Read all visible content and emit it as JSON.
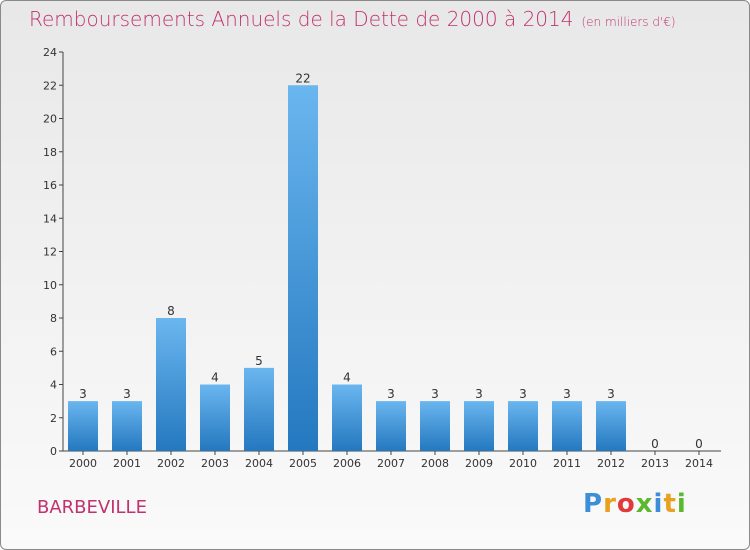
{
  "chart_data": {
    "type": "bar",
    "title": "Remboursements Annuels de la Dette de 2000 à 2014",
    "unit_note": "(en milliers d'€)",
    "categories": [
      "2000",
      "2001",
      "2002",
      "2003",
      "2004",
      "2005",
      "2006",
      "2007",
      "2008",
      "2009",
      "2010",
      "2011",
      "2012",
      "2013",
      "2014"
    ],
    "values": [
      3,
      3,
      8,
      4,
      5,
      22,
      4,
      3,
      3,
      3,
      3,
      3,
      3,
      0,
      0
    ],
    "ylim": [
      0,
      24
    ],
    "yticks": [
      0,
      2,
      4,
      6,
      8,
      10,
      12,
      14,
      16,
      18,
      20,
      22,
      24
    ],
    "grid": false,
    "bar_color": "#3d8fd4"
  },
  "commune": "BARBEVILLE",
  "logo": {
    "text": "Proxiti",
    "letter_colors": [
      "#3a8fd8",
      "#e8a020",
      "#e03a3a",
      "#5cb82e",
      "#3a8fd8",
      "#e8a020",
      "#5cb82e"
    ]
  }
}
